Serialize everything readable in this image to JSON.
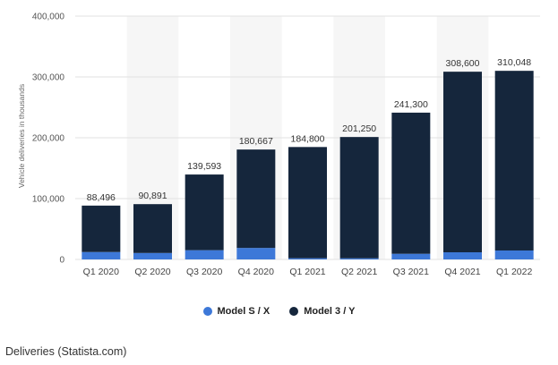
{
  "chart_data": {
    "type": "bar",
    "stacked": true,
    "categories": [
      "Q1 2020",
      "Q2 2020",
      "Q3 2020",
      "Q4 2020",
      "Q1 2021",
      "Q2 2021",
      "Q3 2021",
      "Q4 2021",
      "Q1 2022"
    ],
    "series": [
      {
        "name": "Model S / X",
        "color": "#3d78d8",
        "values": [
          12200,
          10600,
          15200,
          18920,
          2020,
          1890,
          9289,
          11750,
          14724
        ]
      },
      {
        "name": "Model 3 / Y",
        "color": "#15263c",
        "values": [
          76296,
          80291,
          124393,
          161747,
          182780,
          199360,
          232011,
          296850,
          295324
        ]
      }
    ],
    "totals": [
      "88,496",
      "90,891",
      "139,593",
      "180,667",
      "184,800",
      "201,250",
      "241,300",
      "308,600",
      "310,048"
    ],
    "ylabel": "Vehicle deliveries in thousands",
    "ylim": [
      0,
      400000
    ],
    "yticks": [
      0,
      100000,
      200000,
      300000,
      400000
    ],
    "ytick_labels": [
      "0",
      "100,000",
      "200,000",
      "300,000",
      "400,000"
    ],
    "grid": true,
    "legend_position": "bottom"
  },
  "caption": "Deliveries (Statista.com)"
}
